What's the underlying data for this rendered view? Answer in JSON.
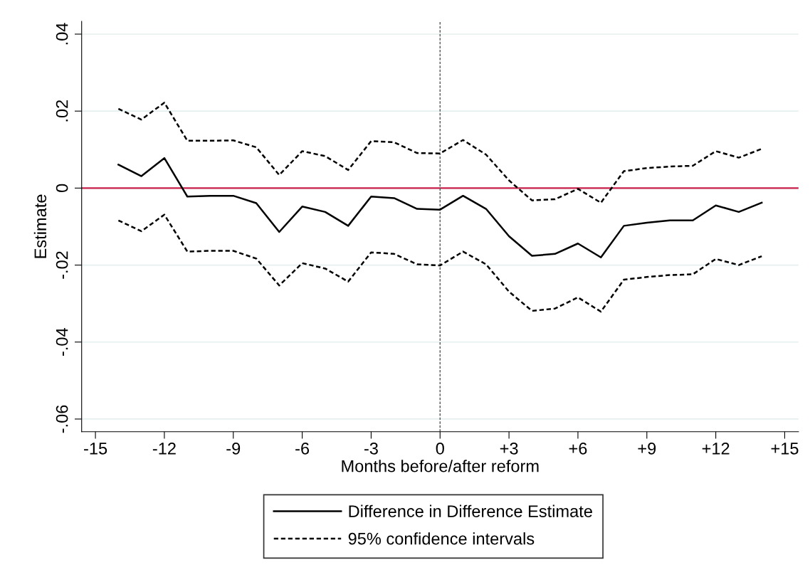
{
  "chart_data": {
    "type": "line",
    "xlabel": "Months before/after reform",
    "ylabel": "Estimate",
    "x": [
      -14,
      -13,
      -12,
      -11,
      -10,
      -9,
      -8,
      -7,
      -6,
      -5,
      -4,
      -3,
      -2,
      -1,
      0,
      1,
      2,
      3,
      4,
      5,
      6,
      7,
      8,
      9,
      10,
      11,
      12,
      13,
      14
    ],
    "series": [
      {
        "name": "Difference in Difference Estimate",
        "color": "#000000",
        "line_style": "solid",
        "values": [
          0.0061,
          0.0031,
          0.0078,
          -0.0022,
          -0.002,
          -0.002,
          -0.0039,
          -0.0114,
          -0.0048,
          -0.0062,
          -0.0098,
          -0.0022,
          -0.0026,
          -0.0054,
          -0.0056,
          -0.002,
          -0.0054,
          -0.0125,
          -0.0176,
          -0.0171,
          -0.0144,
          -0.018,
          -0.0098,
          -0.009,
          -0.0084,
          -0.0084,
          -0.0045,
          -0.0062,
          -0.0038
        ]
      },
      {
        "name": "95% confidence intervals",
        "color": "#000000",
        "line_style": "dashed",
        "values": [
          0.0206,
          0.0178,
          0.0222,
          0.0123,
          0.0123,
          0.0124,
          0.0106,
          0.0034,
          0.0096,
          0.0083,
          0.0047,
          0.0122,
          0.0119,
          0.0091,
          0.009,
          0.0125,
          0.0087,
          0.002,
          -0.0032,
          -0.0029,
          -0.0002,
          -0.0038,
          0.0044,
          0.0052,
          0.0056,
          0.0058,
          0.0096,
          0.0079,
          0.0102
        ]
      },
      {
        "color": "#000000",
        "line_style": "dashed",
        "values": [
          -0.0084,
          -0.0112,
          -0.0069,
          -0.0165,
          -0.0163,
          -0.0163,
          -0.0183,
          -0.0253,
          -0.0195,
          -0.0209,
          -0.0243,
          -0.0167,
          -0.0171,
          -0.0198,
          -0.0201,
          -0.0165,
          -0.0198,
          -0.0269,
          -0.0319,
          -0.0313,
          -0.0284,
          -0.0321,
          -0.0238,
          -0.0231,
          -0.0226,
          -0.0224,
          -0.0184,
          -0.02,
          -0.0177
        ]
      }
    ],
    "xlim": [
      -15.6,
      15.6
    ],
    "xticks": [
      -15,
      -12,
      -9,
      -6,
      -3,
      0,
      {
        "value": 3,
        "label": "+3"
      },
      {
        "value": 6,
        "label": "+6"
      },
      {
        "value": 9,
        "label": "+9"
      },
      {
        "value": 12,
        "label": "+12"
      },
      {
        "value": 15,
        "label": "+15"
      }
    ],
    "ylim": [
      -0.0633,
      0.0433
    ],
    "yticks": [
      {
        "value": -0.06,
        "label": "-.06"
      },
      {
        "value": -0.04,
        "label": "-.04"
      },
      {
        "value": -0.02,
        "label": "-.02"
      },
      {
        "value": 0,
        "label": "0"
      },
      {
        "value": 0.02,
        "label": ".02"
      },
      {
        "value": 0.04,
        "label": ".04"
      }
    ],
    "ref_lines": [
      {
        "axis": "y",
        "value": 0,
        "color": "#c8204a",
        "line_style": "solid"
      },
      {
        "axis": "x",
        "value": 0,
        "color": "#555555",
        "line_style": "dashed"
      }
    ],
    "grid": "y",
    "legend": "bottom",
    "marker": "none"
  }
}
